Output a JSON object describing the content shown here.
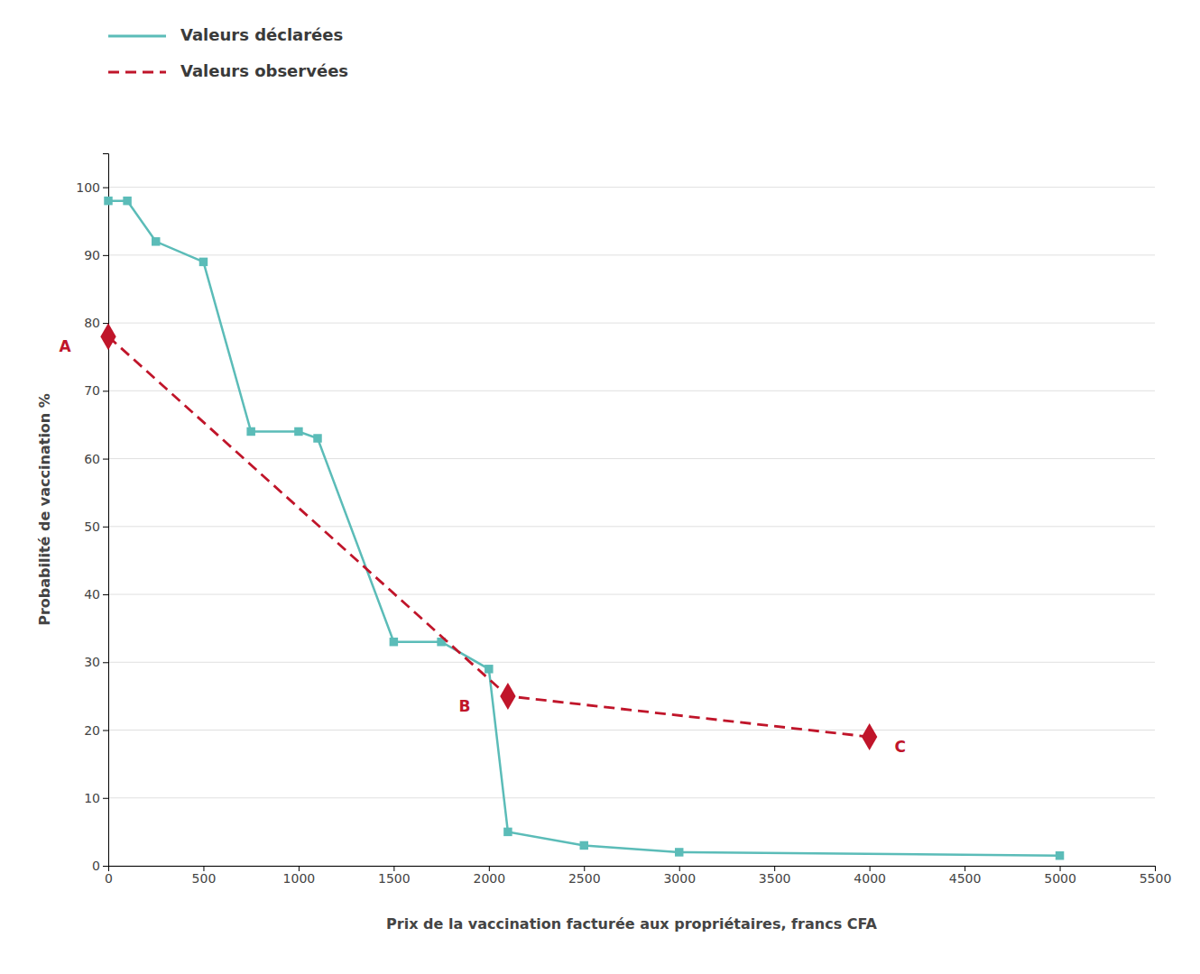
{
  "chart_data": {
    "type": "line",
    "xlabel": "Prix de la vaccination facturée aux propriétaires, francs CFA",
    "ylabel": "Probabilité de vaccination %",
    "series": [
      {
        "name": "Valeurs déclarées",
        "color": "#5bbcb8",
        "marker": "square",
        "line_style": "solid",
        "x": [
          0,
          100,
          250,
          500,
          750,
          1000,
          1100,
          1500,
          1750,
          2000,
          2100,
          2500,
          3000,
          5000
        ],
        "values": [
          98,
          98,
          92,
          89,
          64,
          64,
          63,
          33,
          33,
          29,
          5,
          3,
          2,
          1.5
        ]
      },
      {
        "name": "Valeurs observées",
        "color": "#c0152a",
        "marker": "diamond",
        "line_style": "dashed",
        "x": [
          0,
          2100,
          4000
        ],
        "values": [
          78,
          25,
          19
        ]
      }
    ],
    "annotations": [
      {
        "text": "A",
        "x": 0,
        "y": 78,
        "color": "#c0152a"
      },
      {
        "text": "B",
        "x": 2100,
        "y": 25,
        "color": "#c0152a"
      },
      {
        "text": "C",
        "x": 4000,
        "y": 19,
        "color": "#c0152a"
      }
    ],
    "xlim": [
      0,
      5500
    ],
    "ylim": [
      0,
      105
    ],
    "xticks": [
      0,
      500,
      1000,
      1500,
      2000,
      2500,
      3000,
      3500,
      4000,
      4500,
      5000,
      5500
    ],
    "yticks": [
      0,
      10,
      20,
      30,
      40,
      50,
      60,
      70,
      80,
      90,
      100
    ],
    "grid": "y",
    "legend": "top-left"
  }
}
